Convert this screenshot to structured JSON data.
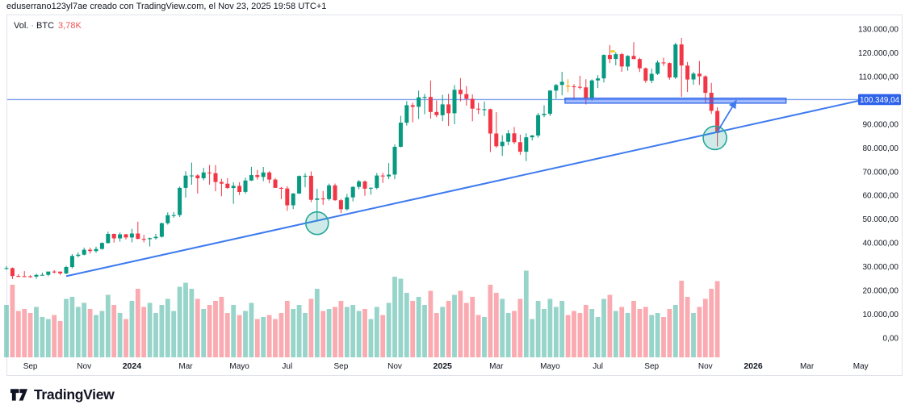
{
  "header": {
    "attribution": "eduserrano123yl7ae creado con TradingView.com, el Nov 23, 2025 19:58 UTC+1"
  },
  "legend": {
    "series_label": "Vol.",
    "separator": "·",
    "symbol": "BTC",
    "value": "3,78K",
    "value_color": "#f05152"
  },
  "footer": {
    "brand": "TradingView"
  },
  "colors": {
    "up": "#089981",
    "down": "#f23645",
    "vol_up": "rgba(8,153,129,0.42)",
    "vol_down": "rgba(242,54,69,0.42)",
    "trend": "#3e7bf0",
    "hline": "#7ca2ee",
    "zone_fill": "rgba(41,98,255,0.42)",
    "zone_stroke": "#2f66e8",
    "circle_stroke": "#26a69a",
    "circle_fill": "rgba(38,166,154,0.22)",
    "badge_bg": "#2e62ea",
    "badge_text": "#ffffff",
    "axis_text": "#131722",
    "doji_override": "#ff9800",
    "yellow_mark": "#f2d21f",
    "pane_border": "#e0e3eb"
  },
  "chart_data": {
    "type": "candlestick",
    "symbol": "BTC",
    "timeframe": "1W",
    "grid": false,
    "legend_position": "top-left",
    "y_axis": {
      "range": [
        0,
        138000
      ],
      "ticks": [
        {
          "value": 130000,
          "label": "130.000,00"
        },
        {
          "value": 120000,
          "label": "120.000,00"
        },
        {
          "value": 110000,
          "label": "110.000,00"
        },
        {
          "value": 90000,
          "label": "90.000,00"
        },
        {
          "value": 80000,
          "label": "80.000,00"
        },
        {
          "value": 70000,
          "label": "70.000,00"
        },
        {
          "value": 60000,
          "label": "60.000,00"
        },
        {
          "value": 50000,
          "label": "50.000,00"
        },
        {
          "value": 40000,
          "label": "40.000,00"
        },
        {
          "value": 30000,
          "label": "30.000,00"
        },
        {
          "value": 20000,
          "label": "20.000,00"
        },
        {
          "value": 10000,
          "label": "10.000,00"
        },
        {
          "value": 0,
          "label": "0,00"
        }
      ]
    },
    "x_axis": {
      "labels": [
        {
          "text": "Sep",
          "week": 4,
          "year": false
        },
        {
          "text": "Nov",
          "week": 13,
          "year": false
        },
        {
          "text": "2024",
          "week": 21,
          "year": true
        },
        {
          "text": "Mar",
          "week": 30,
          "year": false
        },
        {
          "text": "Mayo",
          "week": 39,
          "year": false
        },
        {
          "text": "Jul",
          "week": 47,
          "year": false
        },
        {
          "text": "Sep",
          "week": 56,
          "year": false
        },
        {
          "text": "Nov",
          "week": 65,
          "year": false
        },
        {
          "text": "2025",
          "week": 73,
          "year": true
        },
        {
          "text": "Mar",
          "week": 82,
          "year": false
        },
        {
          "text": "Mayo",
          "week": 91,
          "year": false
        },
        {
          "text": "Jul",
          "week": 99,
          "year": false
        },
        {
          "text": "Sep",
          "week": 108,
          "year": false
        },
        {
          "text": "Nov",
          "week": 117,
          "year": false
        },
        {
          "text": "2026",
          "week": 125,
          "year": true
        },
        {
          "text": "Mar",
          "week": 134,
          "year": false
        },
        {
          "text": "May",
          "week": 143,
          "year": false
        }
      ]
    },
    "price_line": {
      "value": 100349.04,
      "label": "100.349,04"
    },
    "trendline": {
      "from": {
        "week": 10,
        "price": 26000
      },
      "to": {
        "week": 143,
        "price": 100000
      }
    },
    "zone_rect": {
      "week_start": 93.5,
      "week_end": 130.5,
      "price_top": 100900,
      "price_bottom": 98800
    },
    "circles": [
      {
        "name": "trendline-touch-1",
        "week": 52,
        "price": 48300,
        "r": 14
      },
      {
        "name": "trendline-touch-2",
        "week": 118.6,
        "price": 84200,
        "r": 14.5
      }
    ],
    "arrow": {
      "from": {
        "week": 119.1,
        "price": 87200
      },
      "to": {
        "week": 122.2,
        "price": 100100
      }
    },
    "doji_week": 94,
    "yellow_mark": {
      "week": 101.5,
      "price": 120600
    },
    "candles": [
      [
        "2023-08-07",
        29180,
        30180,
        28820,
        29400,
        2.6
      ],
      [
        "2023-08-14",
        29400,
        29680,
        24820,
        26090,
        3.6
      ],
      [
        "2023-08-21",
        26090,
        26840,
        25660,
        26010,
        2.3
      ],
      [
        "2023-08-28",
        26010,
        28140,
        25880,
        25970,
        2.4
      ],
      [
        "2023-09-04",
        25970,
        26420,
        25340,
        25830,
        2.2
      ],
      [
        "2023-09-11",
        25830,
        27020,
        24930,
        26530,
        2.5
      ],
      [
        "2023-09-18",
        26530,
        27480,
        26290,
        26580,
        2.0
      ],
      [
        "2023-09-25",
        26580,
        27320,
        26010,
        27960,
        1.9
      ],
      [
        "2023-10-02",
        27960,
        28580,
        27170,
        27920,
        2.1
      ],
      [
        "2023-10-09",
        27920,
        27990,
        26540,
        27160,
        1.8
      ],
      [
        "2023-10-16",
        27160,
        30330,
        26800,
        29860,
        2.9
      ],
      [
        "2023-10-23",
        29860,
        35280,
        29320,
        34530,
        3.0
      ],
      [
        "2023-10-30",
        34530,
        36000,
        34060,
        35060,
        2.5
      ],
      [
        "2023-11-06",
        35060,
        38000,
        34760,
        37130,
        2.7
      ],
      [
        "2023-11-13",
        37130,
        37980,
        35550,
        36570,
        2.4
      ],
      [
        "2023-11-20",
        36570,
        38450,
        35840,
        37450,
        2.1
      ],
      [
        "2023-11-27",
        37450,
        40250,
        37160,
        39970,
        2.3
      ],
      [
        "2023-12-04",
        39970,
        44760,
        39710,
        43790,
        3.1
      ],
      [
        "2023-12-11",
        43790,
        43910,
        40160,
        41920,
        2.6
      ],
      [
        "2023-12-18",
        41920,
        44410,
        40540,
        43620,
        2.2
      ],
      [
        "2023-12-25",
        43620,
        43810,
        41460,
        42280,
        1.9
      ],
      [
        "2024-01-01",
        42280,
        45910,
        40230,
        43950,
        2.8
      ],
      [
        "2024-01-08",
        43950,
        48960,
        41510,
        41720,
        3.4
      ],
      [
        "2024-01-15",
        41720,
        43410,
        40270,
        41590,
        2.5
      ],
      [
        "2024-01-22",
        41590,
        42260,
        38510,
        42030,
        2.7
      ],
      [
        "2024-01-29",
        42030,
        43790,
        41410,
        42580,
        2.2
      ],
      [
        "2024-02-05",
        42580,
        48560,
        42250,
        48290,
        2.6
      ],
      [
        "2024-02-12",
        48290,
        52860,
        47700,
        51660,
        2.9
      ],
      [
        "2024-02-19",
        51660,
        52990,
        50620,
        51730,
        2.3
      ],
      [
        "2024-02-26",
        51730,
        63660,
        50920,
        63170,
        3.5
      ],
      [
        "2024-03-04",
        63170,
        70190,
        59050,
        68330,
        3.7
      ],
      [
        "2024-03-11",
        68330,
        73800,
        64490,
        68390,
        3.4
      ],
      [
        "2024-03-18",
        68390,
        68910,
        60760,
        67210,
        2.9
      ],
      [
        "2024-03-25",
        67210,
        71560,
        66370,
        69640,
        2.4
      ],
      [
        "2024-04-01",
        69640,
        72810,
        64540,
        69360,
        2.6
      ],
      [
        "2024-04-08",
        69360,
        72760,
        61750,
        65650,
        2.8
      ],
      [
        "2024-04-15",
        65650,
        67010,
        59630,
        64940,
        3.0
      ],
      [
        "2024-04-22",
        64940,
        67240,
        62770,
        63110,
        2.2
      ],
      [
        "2024-04-29",
        63110,
        65510,
        56490,
        64030,
        2.6
      ],
      [
        "2024-05-06",
        64030,
        65560,
        60190,
        61450,
        2.1
      ],
      [
        "2024-05-13",
        61450,
        67460,
        60740,
        66250,
        2.3
      ],
      [
        "2024-05-20",
        66250,
        71990,
        66050,
        68530,
        2.7
      ],
      [
        "2024-05-27",
        68530,
        70710,
        66660,
        67750,
        1.9
      ],
      [
        "2024-06-03",
        67750,
        71960,
        66000,
        69640,
        2.0
      ],
      [
        "2024-06-10",
        69640,
        70200,
        65070,
        66670,
        2.1
      ],
      [
        "2024-06-17",
        66670,
        67310,
        63370,
        63180,
        1.9
      ],
      [
        "2024-06-24",
        63180,
        63590,
        58460,
        62900,
        2.2
      ],
      [
        "2024-07-01",
        62900,
        63870,
        53490,
        55850,
        2.8
      ],
      [
        "2024-07-08",
        55850,
        60990,
        54250,
        60790,
        2.4
      ],
      [
        "2024-07-15",
        60790,
        68390,
        60600,
        68150,
        2.6
      ],
      [
        "2024-07-22",
        68150,
        69310,
        63450,
        68250,
        2.2
      ],
      [
        "2024-07-29",
        68250,
        70090,
        57120,
        58120,
        2.9
      ],
      [
        "2024-08-05",
        58120,
        62760,
        49100,
        58710,
        3.4
      ],
      [
        "2024-08-12",
        58710,
        61860,
        56090,
        58460,
        2.3
      ],
      [
        "2024-08-19",
        58460,
        64960,
        57840,
        64220,
        2.4
      ],
      [
        "2024-08-26",
        64220,
        65010,
        57730,
        57970,
        2.5
      ],
      [
        "2024-09-02",
        57970,
        58530,
        52540,
        54160,
        2.8
      ],
      [
        "2024-09-09",
        54160,
        60630,
        53640,
        59180,
        2.5
      ],
      [
        "2024-09-16",
        59180,
        63860,
        57490,
        63580,
        2.6
      ],
      [
        "2024-09-23",
        63580,
        66490,
        62560,
        65880,
        2.3
      ],
      [
        "2024-09-30",
        65880,
        66260,
        59840,
        62820,
        2.4
      ],
      [
        "2024-10-07",
        62820,
        63370,
        60310,
        63190,
        1.9
      ],
      [
        "2024-10-14",
        63190,
        69410,
        62490,
        68370,
        2.5
      ],
      [
        "2024-10-21",
        68370,
        69530,
        65250,
        68000,
        2.1
      ],
      [
        "2024-10-28",
        68000,
        73630,
        66790,
        68740,
        2.7
      ],
      [
        "2024-11-04",
        68740,
        81460,
        66820,
        80430,
        4.0
      ],
      [
        "2024-11-11",
        80430,
        93490,
        80210,
        90580,
        3.9
      ],
      [
        "2024-11-18",
        90580,
        99670,
        89370,
        97970,
        3.2
      ],
      [
        "2024-11-25",
        97970,
        98970,
        90770,
        97280,
        2.8
      ],
      [
        "2024-12-02",
        97280,
        104090,
        92140,
        101240,
        3.0
      ],
      [
        "2024-12-09",
        101240,
        102660,
        94140,
        101420,
        2.6
      ],
      [
        "2024-12-16",
        101420,
        108370,
        92220,
        95100,
        3.3
      ],
      [
        "2024-12-23",
        95100,
        99970,
        92870,
        93730,
        2.2
      ],
      [
        "2024-12-30",
        93730,
        102310,
        91240,
        98310,
        2.5
      ],
      [
        "2025-01-06",
        98310,
        102730,
        89250,
        94570,
        2.8
      ],
      [
        "2025-01-13",
        94570,
        106410,
        89940,
        104450,
        3.1
      ],
      [
        "2025-01-20",
        104450,
        109370,
        99540,
        102620,
        3.3
      ],
      [
        "2025-01-27",
        102620,
        106010,
        97770,
        100650,
        2.7
      ],
      [
        "2025-02-03",
        100650,
        102510,
        91220,
        96500,
        3.0
      ],
      [
        "2025-02-10",
        96500,
        98910,
        94240,
        96120,
        2.1
      ],
      [
        "2025-02-17",
        96120,
        99490,
        93370,
        96270,
        2.0
      ],
      [
        "2025-02-24",
        96270,
        96510,
        78250,
        86050,
        3.6
      ],
      [
        "2025-03-03",
        86050,
        95010,
        79990,
        80700,
        3.2
      ],
      [
        "2025-03-10",
        80700,
        85320,
        76600,
        82580,
        2.9
      ],
      [
        "2025-03-17",
        82580,
        87480,
        81120,
        86100,
        2.2
      ],
      [
        "2025-03-24",
        86100,
        88780,
        81630,
        82380,
        2.3
      ],
      [
        "2025-03-31",
        82380,
        85570,
        77090,
        78370,
        2.9
      ],
      [
        "2025-04-07",
        78370,
        86110,
        74430,
        84450,
        4.3
      ],
      [
        "2025-04-14",
        84450,
        85450,
        83100,
        85180,
        1.9
      ],
      [
        "2025-04-21",
        85180,
        94710,
        84330,
        93780,
        2.8
      ],
      [
        "2025-04-28",
        93780,
        97910,
        92900,
        94320,
        2.4
      ],
      [
        "2025-05-05",
        94320,
        104340,
        93380,
        104110,
        2.9
      ],
      [
        "2025-05-12",
        104110,
        106910,
        100690,
        106450,
        2.5
      ],
      [
        "2025-05-19",
        106450,
        111990,
        102090,
        107790,
        2.8
      ],
      [
        "2025-05-26",
        106100,
        108900,
        103400,
        105900,
        2.1
      ],
      [
        "2025-06-02",
        105900,
        106810,
        100430,
        105690,
        2.3
      ],
      [
        "2025-06-09",
        105690,
        110360,
        104640,
        105470,
        2.2
      ],
      [
        "2025-06-16",
        105470,
        108880,
        98280,
        101050,
        2.6
      ],
      [
        "2025-06-23",
        101050,
        108810,
        99870,
        108390,
        2.4
      ],
      [
        "2025-06-30",
        108390,
        110590,
        105150,
        109230,
        2.0
      ],
      [
        "2025-07-07",
        109230,
        119300,
        107540,
        119120,
        2.9
      ],
      [
        "2025-07-14",
        119120,
        123250,
        115720,
        117380,
        3.1
      ],
      [
        "2025-07-21",
        117380,
        120260,
        114740,
        119430,
        2.3
      ],
      [
        "2025-07-28",
        119430,
        119970,
        111980,
        114220,
        2.5
      ],
      [
        "2025-08-04",
        114220,
        119010,
        112440,
        118700,
        2.2
      ],
      [
        "2025-08-11",
        118700,
        124510,
        117270,
        117380,
        2.8
      ],
      [
        "2025-08-18",
        117380,
        117910,
        111930,
        113470,
        2.4
      ],
      [
        "2025-08-25",
        113470,
        113810,
        107350,
        108240,
        2.5
      ],
      [
        "2025-09-01",
        108240,
        113310,
        107240,
        111170,
        2.1
      ],
      [
        "2025-09-08",
        111170,
        116800,
        110660,
        115950,
        2.2
      ],
      [
        "2025-09-15",
        115950,
        117960,
        114490,
        115680,
        2.0
      ],
      [
        "2025-09-22",
        115680,
        115980,
        108680,
        109620,
        2.4
      ],
      [
        "2025-09-29",
        109620,
        124260,
        108940,
        123500,
        2.6
      ],
      [
        "2025-10-06",
        123500,
        126280,
        101490,
        114640,
        3.8
      ],
      [
        "2025-10-13",
        114640,
        116140,
        103540,
        108770,
        3.0
      ],
      [
        "2025-10-20",
        108770,
        111960,
        106570,
        111220,
        2.2
      ],
      [
        "2025-10-27",
        111220,
        116550,
        106490,
        110090,
        2.5
      ],
      [
        "2025-11-03",
        110090,
        110540,
        98930,
        103170,
        2.9
      ],
      [
        "2025-11-10",
        103170,
        107320,
        94290,
        95560,
        3.4
      ],
      [
        "2025-11-17",
        95560,
        97090,
        80590,
        86250,
        3.78
      ]
    ]
  }
}
